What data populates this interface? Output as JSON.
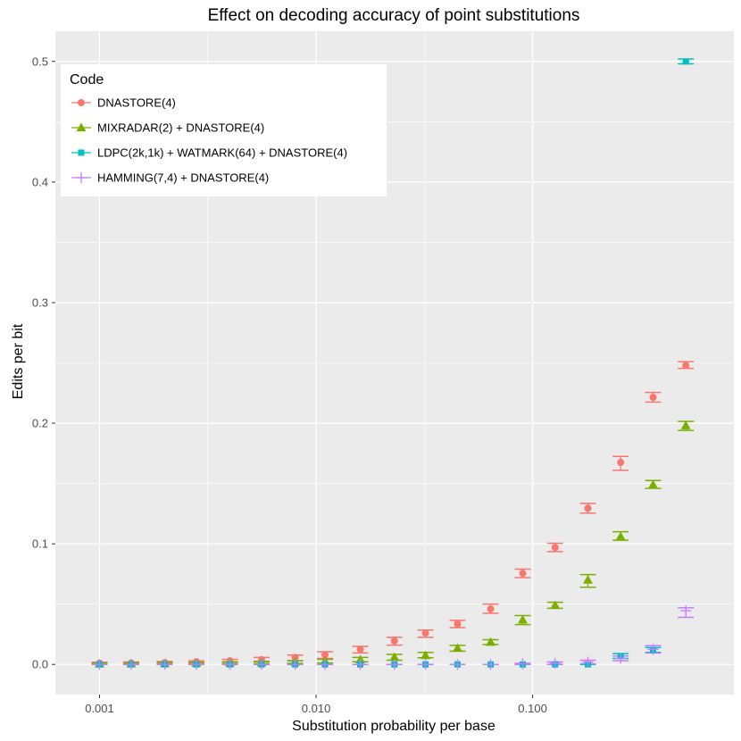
{
  "chart_data": {
    "type": "scatter",
    "title": "Effect on decoding accuracy of point substitutions",
    "xlabel": "Substitution probability per base",
    "ylabel": "Edits per bit",
    "x_scale": "log10",
    "xlim": [
      0.000625,
      0.85
    ],
    "ylim": [
      -0.025,
      0.525
    ],
    "x_ticks": [
      0.001,
      0.01,
      0.1
    ],
    "x_tick_labels": [
      "0.001",
      "0.010",
      "0.100"
    ],
    "y_ticks": [
      0.0,
      0.1,
      0.2,
      0.3,
      0.4,
      0.5
    ],
    "y_tick_labels": [
      "0.0",
      "0.1",
      "0.2",
      "0.3",
      "0.4",
      "0.5"
    ],
    "grid": true,
    "legend": {
      "title": "Code",
      "position": "top-left"
    },
    "x": [
      0.001,
      0.0014,
      0.002,
      0.0028,
      0.004,
      0.0056,
      0.008,
      0.011,
      0.016,
      0.023,
      0.032,
      0.045,
      0.064,
      0.09,
      0.127,
      0.18,
      0.255,
      0.36,
      0.51
    ],
    "series": [
      {
        "name": "DNASTORE(4)",
        "color": "#F8766D",
        "marker": "circle",
        "values": [
          0.001,
          0.0012,
          0.0016,
          0.0022,
          0.003,
          0.004,
          0.0058,
          0.008,
          0.0125,
          0.0195,
          0.026,
          0.0335,
          0.046,
          0.0755,
          0.097,
          0.1295,
          0.1675,
          0.2215,
          0.248
        ],
        "err_low": [
          0.0002,
          0.0005,
          0.0009,
          0.0013,
          0.0018,
          0.0022,
          0.0032,
          0.005,
          0.0095,
          0.016,
          0.0225,
          0.0305,
          0.0425,
          0.072,
          0.0935,
          0.1255,
          0.161,
          0.2175,
          0.2455
        ],
        "err_high": [
          0.0018,
          0.002,
          0.0025,
          0.003,
          0.0042,
          0.0058,
          0.0078,
          0.0105,
          0.015,
          0.0225,
          0.0285,
          0.0365,
          0.05,
          0.079,
          0.1005,
          0.1335,
          0.1725,
          0.2255,
          0.251
        ]
      },
      {
        "name": "MIXRADAR(2) + DNASTORE(4)",
        "color": "#7CAE00",
        "marker": "triangle",
        "values": [
          0.0005,
          0.0006,
          0.0008,
          0.001,
          0.0013,
          0.0016,
          0.002,
          0.0028,
          0.004,
          0.006,
          0.0075,
          0.0135,
          0.0185,
          0.037,
          0.049,
          0.07,
          0.106,
          0.149,
          0.198
        ],
        "err_low": [
          0.0,
          0.0,
          0.0001,
          0.0003,
          0.0005,
          0.0007,
          0.0009,
          0.0012,
          0.0022,
          0.0035,
          0.0055,
          0.011,
          0.0165,
          0.033,
          0.0465,
          0.064,
          0.103,
          0.146,
          0.194
        ],
        "err_high": [
          0.0012,
          0.0014,
          0.0017,
          0.0019,
          0.0022,
          0.0026,
          0.003,
          0.0042,
          0.0058,
          0.0083,
          0.01,
          0.0158,
          0.0205,
          0.0405,
          0.0515,
          0.0745,
          0.11,
          0.1525,
          0.2015
        ]
      },
      {
        "name": "LDPC(2k,1k) + WATMARK(64) + DNASTORE(4)",
        "color": "#00BFC4",
        "marker": "square",
        "values": [
          0.0,
          0.0,
          0.0,
          0.0,
          0.0,
          0.0,
          0.0,
          0.0,
          0.0,
          0.0,
          0.0,
          0.0,
          0.0,
          0.0,
          0.0,
          0.0,
          0.007,
          0.012,
          0.5
        ],
        "err_low": [
          0.0,
          0.0,
          0.0,
          0.0,
          0.0,
          0.0,
          0.0,
          0.0,
          0.0,
          0.0,
          0.0,
          0.0,
          0.0,
          0.0,
          0.0,
          0.0,
          0.005,
          0.01,
          0.498
        ],
        "err_high": [
          0.0,
          0.0,
          0.0,
          0.0,
          0.0,
          0.0,
          0.0,
          0.0,
          0.0,
          0.0,
          0.0,
          0.0,
          0.0,
          0.0,
          0.0,
          0.0,
          0.009,
          0.014,
          0.502
        ]
      },
      {
        "name": "HAMMING(7,4) + DNASTORE(4)",
        "color": "#C77CFF",
        "marker": "cross",
        "values": [
          0.0,
          0.0,
          0.0,
          0.0,
          0.0,
          0.0,
          0.0,
          0.0,
          0.0,
          0.0,
          0.0,
          0.0,
          0.0,
          0.0005,
          0.001,
          0.002,
          0.005,
          0.0125,
          0.0445
        ],
        "err_low": [
          0.0,
          0.0,
          0.0,
          0.0,
          0.0,
          0.0,
          0.0,
          0.0,
          0.0,
          0.0,
          0.0,
          0.0,
          0.0,
          0.0,
          0.0,
          0.0005,
          0.003,
          0.0095,
          0.039
        ],
        "err_high": [
          0.0,
          0.0,
          0.0,
          0.0,
          0.0,
          0.0,
          0.0,
          0.0,
          0.0,
          0.0,
          0.0,
          0.0,
          0.0,
          0.001,
          0.002,
          0.0035,
          0.007,
          0.0155,
          0.047
        ]
      }
    ]
  }
}
